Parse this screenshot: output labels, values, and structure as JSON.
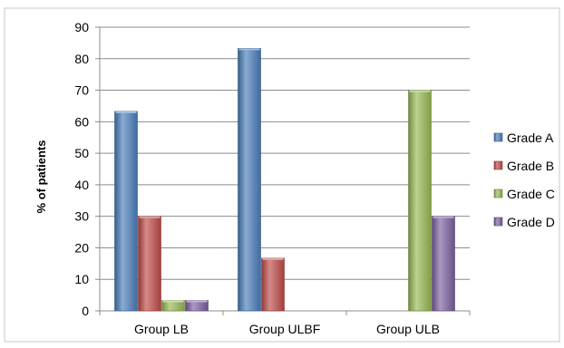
{
  "chart_data": {
    "type": "bar",
    "title": "",
    "xlabel": "",
    "ylabel": "% of patients",
    "ylim": [
      0,
      90
    ],
    "yticks": [
      0,
      10,
      20,
      30,
      40,
      50,
      60,
      70,
      80,
      90
    ],
    "grid": true,
    "legend_position": "right",
    "categories": [
      "Group LB",
      "Group ULBF",
      "Group ULB"
    ],
    "series": [
      {
        "name": "Grade A",
        "color": "#4a7ebb",
        "values": [
          63.3,
          83.3,
          0
        ]
      },
      {
        "name": "Grade B",
        "color": "#be4b48",
        "values": [
          30,
          16.7,
          0
        ]
      },
      {
        "name": "Grade C",
        "color": "#98b954",
        "values": [
          3.3,
          0,
          70
        ]
      },
      {
        "name": "Grade D",
        "color": "#7d60a0",
        "values": [
          3.3,
          0,
          30
        ]
      }
    ]
  }
}
